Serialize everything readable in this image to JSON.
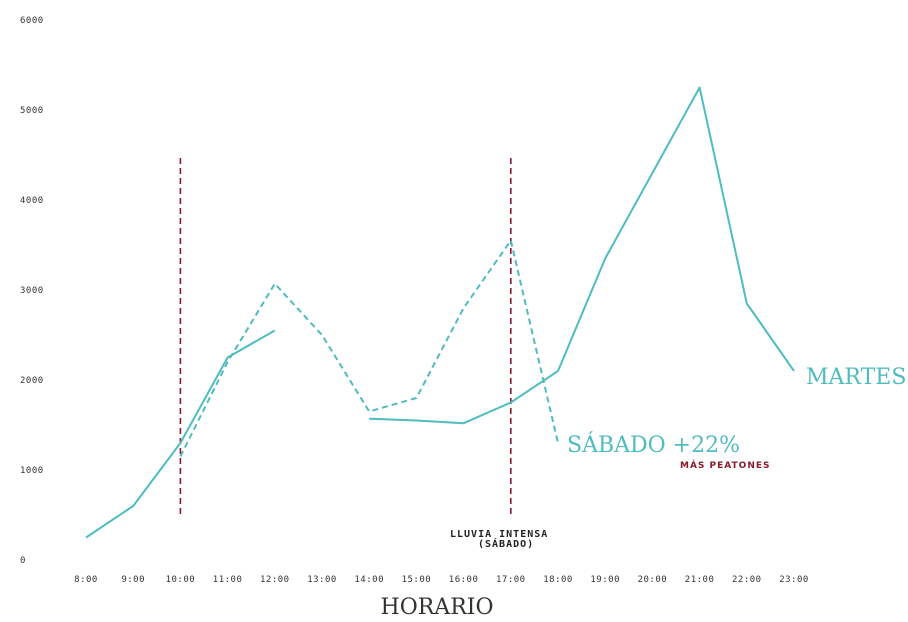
{
  "chart_data": {
    "type": "line",
    "xlabel": "HORARIO",
    "ylabel": "",
    "ylim": [
      0,
      6000
    ],
    "yticks": [
      "0",
      "1000",
      "2000",
      "3000",
      "4000",
      "5000",
      "6000"
    ],
    "categories": [
      "8:00",
      "9:00",
      "10:00",
      "11:00",
      "12:00",
      "13:00",
      "14:00",
      "15:00",
      "16:00",
      "17:00",
      "18:00",
      "19:00",
      "20:00",
      "21:00",
      "22:00",
      "23:00"
    ],
    "grid": false,
    "series": [
      {
        "name": "MARTES",
        "style": "solid",
        "color": "#4fbcbf",
        "values": [
          250,
          600,
          1300,
          2250,
          2550,
          null,
          1570,
          1550,
          1520,
          1750,
          2100,
          3350,
          4300,
          5250,
          2850,
          2100
        ]
      },
      {
        "name": "SÁBADO +22%",
        "style": "dashed",
        "color": "#4fbcbf",
        "values": [
          null,
          null,
          1150,
          2200,
          3070,
          2500,
          1650,
          1800,
          2800,
          3550,
          1300,
          null,
          null,
          null,
          null,
          null
        ]
      }
    ],
    "annotations": {
      "sub_label": "MÁS PEATONES",
      "event_label_line1": "LLUVIA INTENSA",
      "event_label_line2": "(SÁBADO)",
      "vline_color": "#8b1a2b",
      "vlines_at": [
        "10:00",
        "17:00"
      ],
      "sub_label_color": "#8b1a2b"
    }
  }
}
